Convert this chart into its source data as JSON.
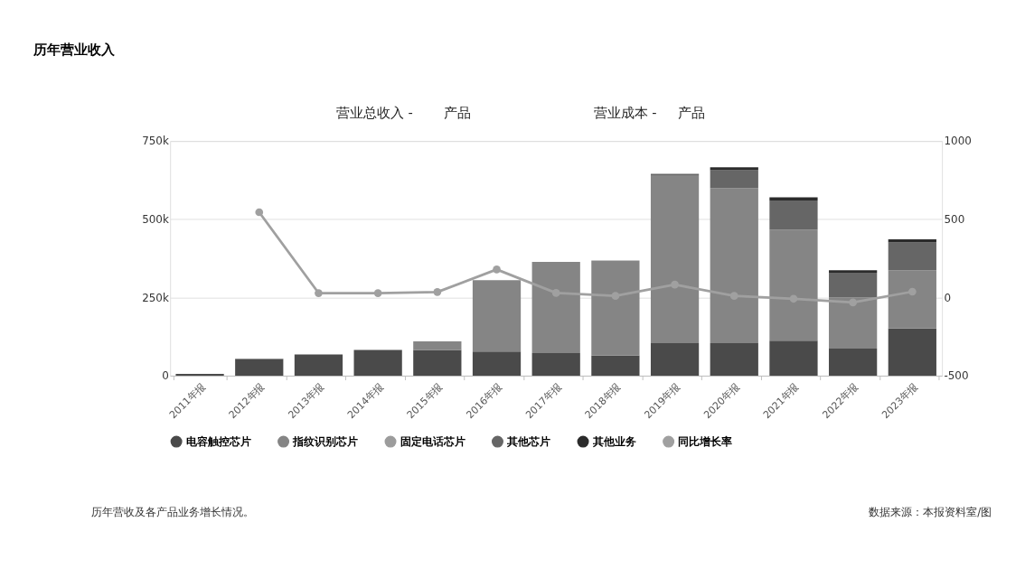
{
  "chart_data": {
    "type": "bar",
    "title": "历年营业收入",
    "categories": [
      "2011年报",
      "2012年报",
      "2013年报",
      "2014年报",
      "2015年报",
      "2016年报",
      "2017年报",
      "2018年报",
      "2019年报",
      "2020年报",
      "2021年报",
      "2022年报",
      "2023年报"
    ],
    "stacked": true,
    "series": [
      {
        "name": "电容触控芯片",
        "color": "#4a4a4a",
        "values": [
          6000,
          53000,
          68000,
          82000,
          82000,
          77000,
          72000,
          64000,
          104000,
          104000,
          112000,
          87000,
          151000
        ]
      },
      {
        "name": "指纹识别芯片",
        "color": "#858585",
        "values": [
          0,
          2000,
          0,
          0,
          28000,
          228000,
          292000,
          304000,
          537000,
          496000,
          355000,
          163000,
          185000
        ]
      },
      {
        "name": "固定电话芯片",
        "color": "#9c9c9c",
        "values": [
          0,
          0,
          0,
          0,
          0,
          0,
          0,
          0,
          0,
          0,
          0,
          0,
          0
        ]
      },
      {
        "name": "其他芯片",
        "color": "#666666",
        "values": [
          0,
          0,
          0,
          0,
          0,
          0,
          0,
          0,
          4000,
          57000,
          93000,
          79000,
          90000
        ]
      },
      {
        "name": "其他业务",
        "color": "#2b2b2b",
        "values": [
          0,
          0,
          0,
          0,
          0,
          0,
          0,
          0,
          0,
          9000,
          10000,
          8000,
          10000
        ]
      },
      {
        "name": "同比增长率",
        "color": "#a0a0a0",
        "type": "line",
        "axis": "y2",
        "marker": "circle",
        "line_style": "solid",
        "values": [
          null,
          545,
          28,
          28,
          35,
          179,
          29,
          10,
          82,
          10,
          -8,
          -32,
          37
        ]
      }
    ],
    "ylim": [
      0,
      750000
    ],
    "yticks": [
      0,
      {
        "value": 250000,
        "label": "250k"
      },
      {
        "value": 500000,
        "label": "500k"
      },
      {
        "value": 750000,
        "label": "750k"
      }
    ],
    "y2lim": [
      -500,
      1000
    ],
    "y2ticks": [
      -500,
      0,
      500,
      1000
    ],
    "grid": "y",
    "legend": "bottom",
    "annotations": [
      "营业总收入 -",
      "产品",
      "营业成本 -",
      "产品",
      "历年营收及各产品业务增长情况。",
      "数据来源：本报资料室/图"
    ]
  }
}
